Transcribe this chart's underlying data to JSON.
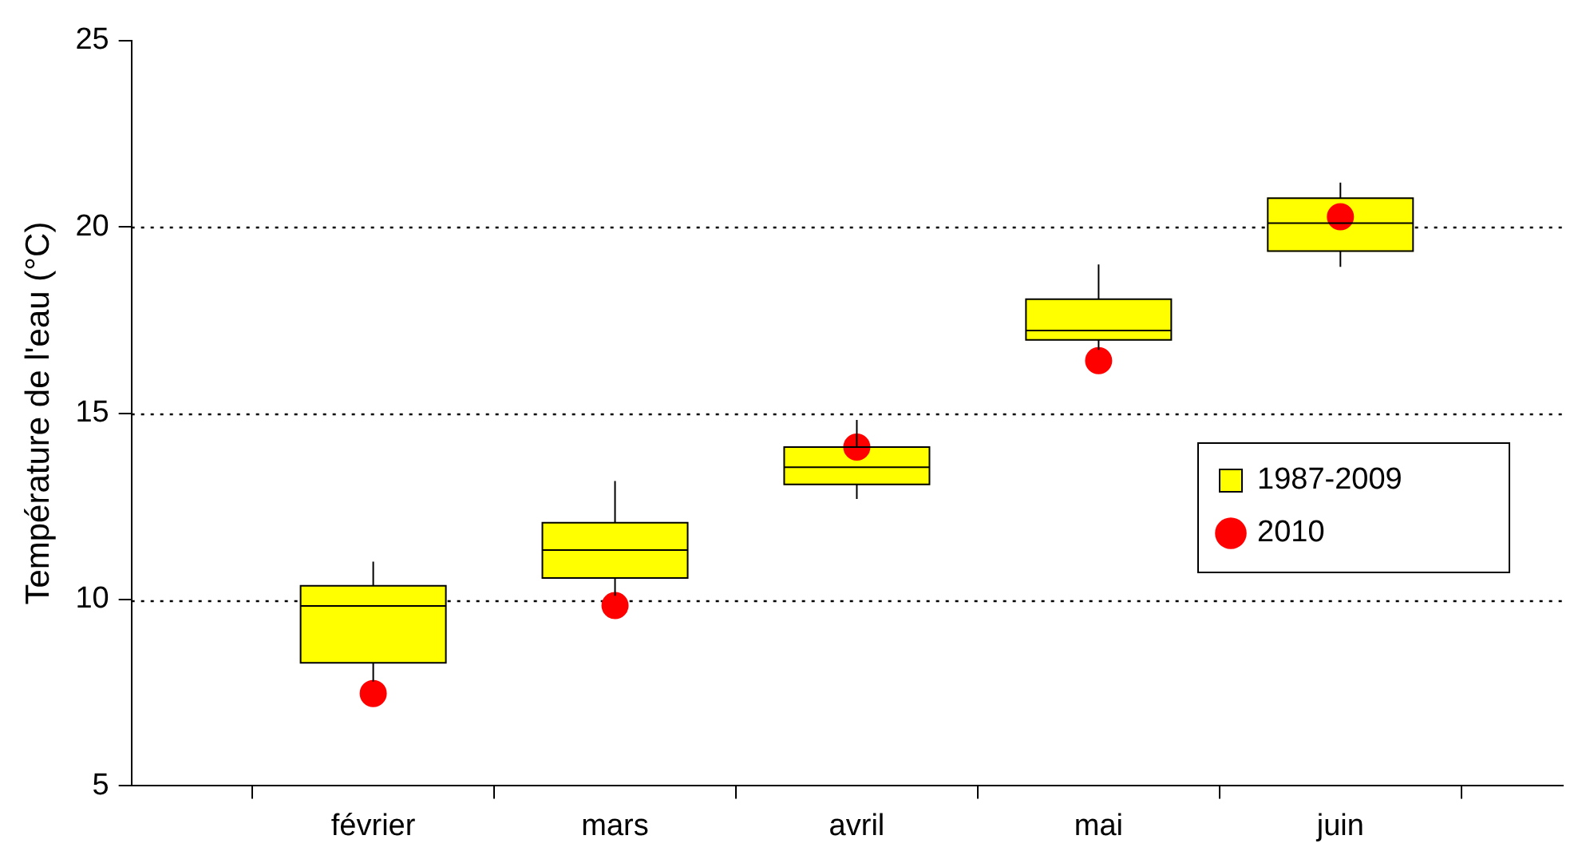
{
  "chart_data": {
    "type": "box",
    "ylabel": "Température de l'eau (°C)",
    "categories": [
      "février",
      "mars",
      "avril",
      "mai",
      "juin"
    ],
    "series": [
      {
        "name": "1987-2009",
        "type": "box",
        "color": "#ffff00",
        "boxes": [
          {
            "low": 7.8,
            "q1": 8.3,
            "median": 9.83,
            "q3": 10.37,
            "high": 11.02
          },
          {
            "low": 10.1,
            "q1": 10.58,
            "median": 11.33,
            "q3": 12.06,
            "high": 13.18
          },
          {
            "low": 12.7,
            "q1": 13.09,
            "median": 13.55,
            "q3": 14.09,
            "high": 14.82
          },
          {
            "low": 16.7,
            "q1": 16.97,
            "median": 17.22,
            "q3": 18.06,
            "high": 18.99
          },
          {
            "low": 18.93,
            "q1": 19.35,
            "median": 20.1,
            "q3": 20.77,
            "high": 21.19
          }
        ]
      },
      {
        "name": "2010",
        "type": "scatter",
        "color": "#ff0000",
        "x": [
          "février",
          "mars",
          "avril",
          "mai",
          "juin"
        ],
        "values": [
          7.48,
          9.84,
          14.09,
          16.41,
          20.27
        ]
      }
    ],
    "ylim": [
      5,
      25
    ],
    "yticks": [
      5,
      10,
      15,
      20,
      25
    ],
    "grid": "y",
    "legend": "right",
    "marker": "circle"
  }
}
